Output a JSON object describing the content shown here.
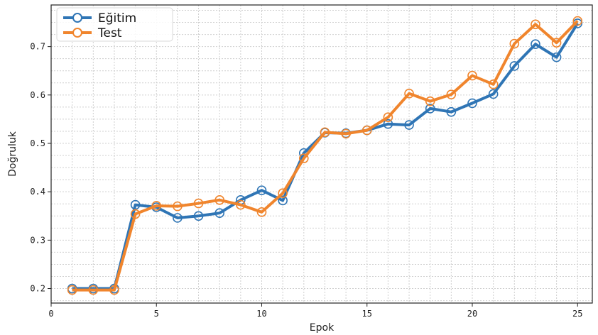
{
  "chart_data": {
    "type": "line",
    "title": "",
    "xlabel": "Epok",
    "ylabel": "Doğruluk",
    "xlim": [
      0,
      25.7
    ],
    "ylim": [
      0.17,
      0.786
    ],
    "xticks": [
      0,
      5,
      10,
      15,
      20,
      25
    ],
    "yticks": [
      0.2,
      0.3,
      0.4,
      0.5,
      0.6,
      0.7
    ],
    "grid": true,
    "legend_position": "top-left",
    "x": [
      1,
      2,
      3,
      4,
      5,
      6,
      7,
      8,
      9,
      10,
      11,
      12,
      13,
      14,
      15,
      16,
      17,
      18,
      19,
      20,
      21,
      22,
      23,
      24,
      25
    ],
    "series": [
      {
        "name": "Eğitim",
        "color": "#2f75b5",
        "values": [
          0.2,
          0.2,
          0.2,
          0.373,
          0.368,
          0.346,
          0.35,
          0.356,
          0.383,
          0.403,
          0.382,
          0.48,
          0.522,
          0.521,
          0.527,
          0.54,
          0.538,
          0.572,
          0.565,
          0.583,
          0.602,
          0.66,
          0.705,
          0.678,
          0.748
        ]
      },
      {
        "name": "Test",
        "color": "#f0852d",
        "values": [
          0.197,
          0.197,
          0.197,
          0.354,
          0.371,
          0.37,
          0.376,
          0.383,
          0.373,
          0.358,
          0.397,
          0.469,
          0.523,
          0.52,
          0.527,
          0.554,
          0.603,
          0.587,
          0.601,
          0.64,
          0.622,
          0.706,
          0.746,
          0.708,
          0.753
        ]
      }
    ]
  }
}
